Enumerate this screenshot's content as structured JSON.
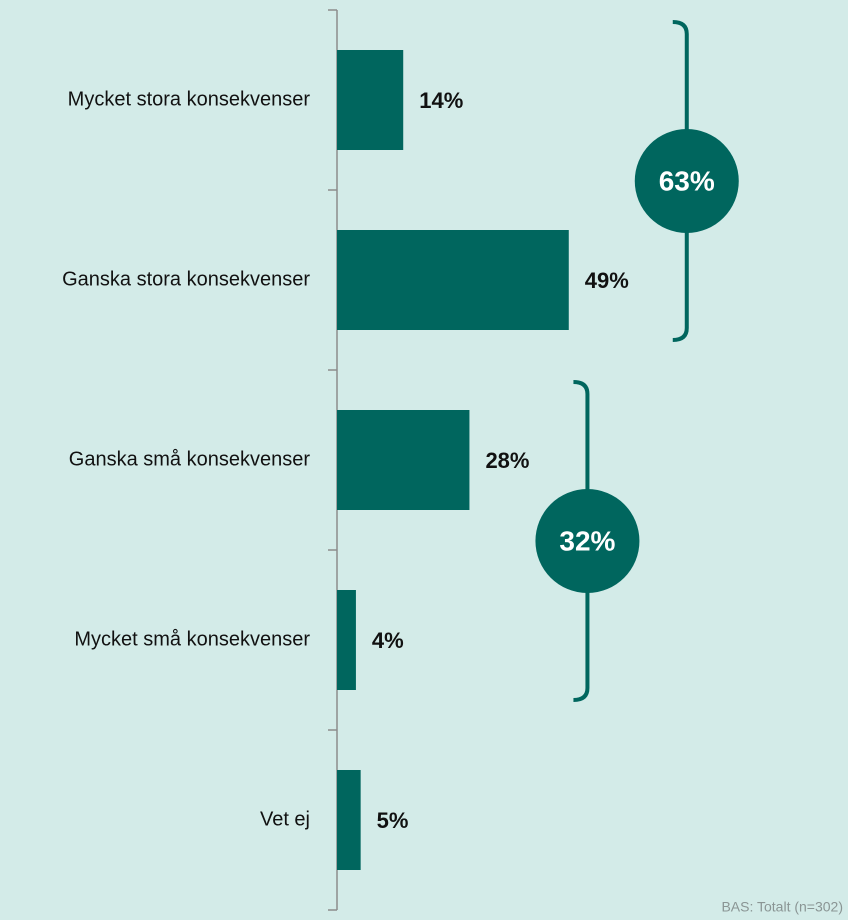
{
  "chart_data": {
    "type": "hbar",
    "categories": [
      "Mycket stora konsekvenser",
      "Ganska stora konsekvenser",
      "Ganska små konsekvenser",
      "Mycket små konsekvenser",
      "Vet ej"
    ],
    "values": [
      14,
      49,
      28,
      4,
      5
    ],
    "value_labels": [
      "14%",
      "49%",
      "28%",
      "4%",
      "5%"
    ],
    "color": "#00665e",
    "xlim": [
      0,
      100
    ],
    "groups": [
      {
        "value": 63,
        "label": "63%",
        "categories": [
          "Mycket stora konsekvenser",
          "Ganska stora konsekvenser"
        ]
      },
      {
        "value": 32,
        "label": "32%",
        "categories": [
          "Ganska små konsekvenser",
          "Mycket små konsekvenser"
        ]
      }
    ],
    "footnote": "BAS: Totalt (n=302)"
  }
}
